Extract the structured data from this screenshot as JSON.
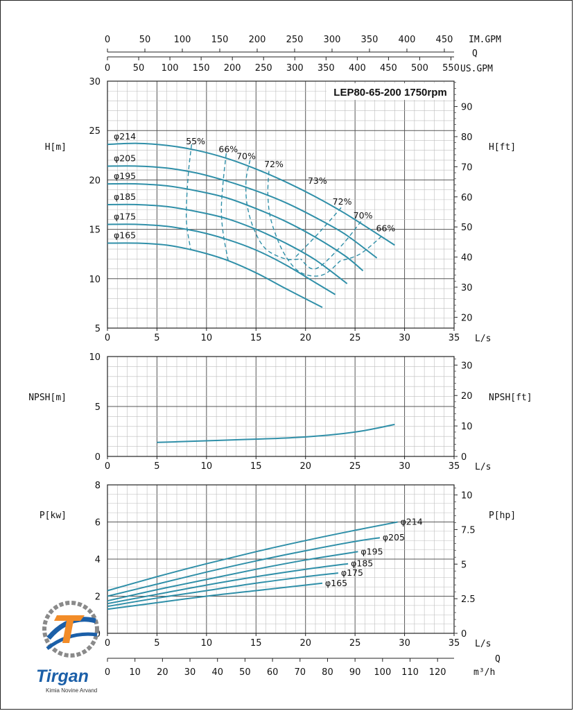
{
  "colors": {
    "curve": "#2f8fa8",
    "grid_major": "#555555",
    "grid_minor": "#bdbdbd",
    "text": "#111111",
    "logo_blue": "#1b5fa8",
    "logo_orange": "#f28c28",
    "logo_gray": "#8a8a8a"
  },
  "logo": {
    "brand": "Tirgan",
    "tagline": "Kimia Novine Arvand"
  },
  "chart_data": [
    {
      "type": "line",
      "id": "head",
      "title": "LEP80-65-200 1750rpm",
      "ylabel": "H[m]",
      "ylabel_right": "H[ft]",
      "xlabel": "L/s",
      "xlim": [
        0,
        35
      ],
      "ylim": [
        5,
        30
      ],
      "x_ticks": [
        "0",
        "5",
        "10",
        "15",
        "20",
        "25",
        "30",
        "35"
      ],
      "y_ticks": [
        "5",
        "10",
        "15",
        "20",
        "25",
        "30"
      ],
      "y_right_ticks": [
        "20",
        "30",
        "40",
        "50",
        "60",
        "70",
        "80",
        "90"
      ],
      "top_axes": [
        {
          "label": "IM.GPM",
          "ticks": [
            "0",
            "50",
            "100",
            "150",
            "200",
            "250",
            "300",
            "350",
            "400",
            "450"
          ],
          "max": 463
        },
        {
          "label": "Q",
          "ticks": [],
          "max": 0
        },
        {
          "label": "US.GPM",
          "ticks": [
            "0",
            "50",
            "100",
            "150",
            "200",
            "250",
            "300",
            "350",
            "400",
            "450",
            "500",
            "550"
          ],
          "max": 555
        }
      ],
      "series": [
        {
          "name": "φ214",
          "x": [
            0,
            3,
            6,
            9,
            12,
            15,
            18,
            21,
            24,
            27,
            29
          ],
          "y": [
            23.6,
            23.7,
            23.5,
            23.0,
            22.2,
            21.1,
            19.8,
            18.3,
            16.6,
            14.7,
            13.4
          ]
        },
        {
          "name": "φ205",
          "x": [
            0,
            3,
            6,
            9,
            12,
            15,
            18,
            21,
            24,
            27.2
          ],
          "y": [
            21.4,
            21.4,
            21.2,
            20.7,
            19.9,
            18.9,
            17.7,
            16.2,
            14.5,
            12.1
          ]
        },
        {
          "name": "φ195",
          "x": [
            0,
            3,
            6,
            9,
            12,
            15,
            18,
            21,
            24,
            25.8
          ],
          "y": [
            19.6,
            19.6,
            19.4,
            18.9,
            18.2,
            17.1,
            15.8,
            14.2,
            12.3,
            10.8
          ]
        },
        {
          "name": "φ185",
          "x": [
            0,
            3,
            6,
            9,
            12,
            15,
            18,
            21,
            24.2
          ],
          "y": [
            17.5,
            17.5,
            17.3,
            16.8,
            16.1,
            15.0,
            13.6,
            11.9,
            9.5
          ]
        },
        {
          "name": "φ175",
          "x": [
            0,
            3,
            6,
            9,
            12,
            15,
            18,
            21,
            23
          ],
          "y": [
            15.5,
            15.5,
            15.3,
            14.8,
            14.0,
            12.9,
            11.4,
            9.6,
            8.4
          ]
        },
        {
          "name": "φ165",
          "x": [
            0,
            3,
            6,
            9,
            12,
            15,
            18,
            21.7
          ],
          "y": [
            13.6,
            13.6,
            13.4,
            12.8,
            11.9,
            10.6,
            9.0,
            7.1
          ]
        }
      ],
      "efficiency_labels": [
        {
          "text": "55%",
          "x": 8.9,
          "y": 23.6
        },
        {
          "text": "66%",
          "x": 12.2,
          "y": 22.8
        },
        {
          "text": "70%",
          "x": 14.0,
          "y": 22.1
        },
        {
          "text": "72%",
          "x": 16.8,
          "y": 21.3
        },
        {
          "text": "73%",
          "x": 21.2,
          "y": 19.6
        },
        {
          "text": "72%",
          "x": 23.7,
          "y": 17.5
        },
        {
          "text": "70%",
          "x": 25.8,
          "y": 16.1
        },
        {
          "text": "66%",
          "x": 28.1,
          "y": 14.8
        }
      ],
      "efficiency_curves": [
        {
          "x": [
            8.5,
            8.2,
            8.0,
            8.0,
            8.4
          ],
          "y": [
            23.6,
            21.0,
            18.0,
            15.5,
            13.0
          ]
        },
        {
          "x": [
            12.0,
            11.7,
            11.5,
            11.7,
            12.2
          ],
          "y": [
            22.7,
            20.0,
            17.0,
            14.5,
            11.8
          ]
        },
        {
          "x": [
            14.4,
            14.0,
            14.1,
            14.8,
            16.0,
            18.0,
            19.5
          ],
          "y": [
            22.0,
            20.0,
            17.5,
            15.0,
            13.0,
            12.0,
            12.0
          ]
        },
        {
          "x": [
            16.3,
            16.2,
            16.5,
            17.6,
            19.0,
            20.5,
            22.0,
            23.5
          ],
          "y": [
            20.9,
            18.5,
            16.0,
            13.0,
            11.0,
            10.3,
            10.5,
            11.8
          ]
        }
      ]
    },
    {
      "type": "line",
      "id": "npsh",
      "ylabel": "NPSH[m]",
      "ylabel_right": "NPSH[ft]",
      "xlabel": "L/s",
      "xlim": [
        0,
        35
      ],
      "ylim": [
        0,
        10
      ],
      "x_ticks": [
        "0",
        "5",
        "10",
        "15",
        "20",
        "25",
        "30",
        "35"
      ],
      "y_ticks": [
        "0",
        "5",
        "10"
      ],
      "y_right_ticks": [
        "0",
        "10",
        "20",
        "30"
      ],
      "series": [
        {
          "x": [
            5,
            8,
            11,
            14,
            17,
            20,
            23,
            26,
            29
          ],
          "y": [
            1.4,
            1.5,
            1.6,
            1.7,
            1.8,
            1.95,
            2.2,
            2.6,
            3.2
          ]
        }
      ]
    },
    {
      "type": "line",
      "id": "power",
      "ylabel": "P[kw]",
      "ylabel_right": "P[hp]",
      "xlabel": "L/s",
      "extra_label": "Q",
      "xlim": [
        0,
        35
      ],
      "ylim": [
        0,
        8
      ],
      "x_ticks": [
        "0",
        "5",
        "10",
        "15",
        "20",
        "25",
        "30",
        "35"
      ],
      "y_ticks": [
        "0",
        "2",
        "4",
        "6",
        "8"
      ],
      "y_right_ticks": [
        "0",
        "2.5",
        "5",
        "7.5",
        "10"
      ],
      "bottom_axis": {
        "label": "m³/h",
        "ticks": [
          "0",
          "10",
          "20",
          "30",
          "40",
          "50",
          "60",
          "70",
          "80",
          "90",
          "100",
          "110",
          "120"
        ],
        "max": 126
      },
      "series": [
        {
          "name": "φ214",
          "x": [
            0,
            5,
            10,
            15,
            20,
            25,
            29.3
          ],
          "y": [
            2.3,
            3.05,
            3.75,
            4.4,
            5.0,
            5.55,
            6.0
          ]
        },
        {
          "name": "φ205",
          "x": [
            0,
            5,
            10,
            15,
            20,
            25,
            27.5
          ],
          "y": [
            2.0,
            2.65,
            3.3,
            3.9,
            4.45,
            4.95,
            5.15
          ]
        },
        {
          "name": "φ195",
          "x": [
            0,
            5,
            10,
            15,
            20,
            25.3
          ],
          "y": [
            1.75,
            2.35,
            2.9,
            3.45,
            3.95,
            4.4
          ]
        },
        {
          "name": "φ185",
          "x": [
            0,
            5,
            10,
            15,
            20,
            24.3
          ],
          "y": [
            1.6,
            2.1,
            2.6,
            3.05,
            3.45,
            3.75
          ]
        },
        {
          "name": "φ175",
          "x": [
            0,
            5,
            10,
            15,
            20,
            23.3
          ],
          "y": [
            1.45,
            1.9,
            2.3,
            2.7,
            3.05,
            3.25
          ]
        },
        {
          "name": "φ165",
          "x": [
            0,
            5,
            10,
            15,
            20,
            21.7
          ],
          "y": [
            1.3,
            1.65,
            2.0,
            2.3,
            2.6,
            2.7
          ]
        }
      ]
    }
  ]
}
